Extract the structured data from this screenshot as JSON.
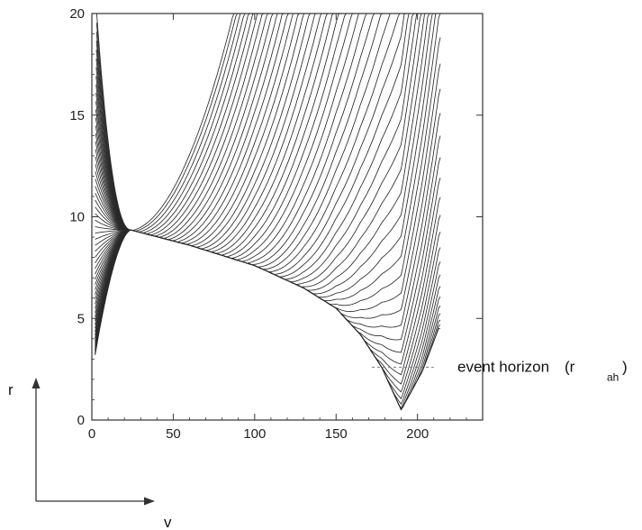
{
  "chart_data": {
    "type": "line",
    "title": "",
    "xlabel": "v",
    "ylabel": "r",
    "xlim": [
      0,
      240
    ],
    "ylim": [
      0,
      20
    ],
    "x_ticks": [
      0,
      50,
      100,
      150,
      200
    ],
    "y_ticks": [
      0,
      5,
      10,
      15,
      20
    ],
    "grid": false,
    "legend": "none",
    "annotation": {
      "text": "event horizon",
      "label_open": "(r",
      "label_sub": "ah",
      "label_close": ")",
      "r_value": 2.6,
      "v_start": 172,
      "v_end": 210
    },
    "series_summary": {
      "count": 60,
      "start_r_min": 3.2,
      "start_r_max": 20,
      "peak_v": 24,
      "peak_r": 9.35,
      "envelope": [
        [
          24,
          9.35
        ],
        [
          60,
          8.6
        ],
        [
          100,
          7.6
        ],
        [
          130,
          6.5
        ],
        [
          150,
          5.5
        ],
        [
          165,
          4.2
        ],
        [
          178,
          2.6
        ],
        [
          190,
          0.5
        ],
        [
          203,
          2.4
        ],
        [
          213,
          4.5
        ]
      ],
      "divergence_v_min": 25,
      "divergence_v_max": 214
    },
    "colors": {
      "line": "#2a2a2a",
      "axis": "#333333",
      "annotation": "#6a7a8a"
    }
  },
  "axis_name_x": "v",
  "axis_name_y": "r"
}
